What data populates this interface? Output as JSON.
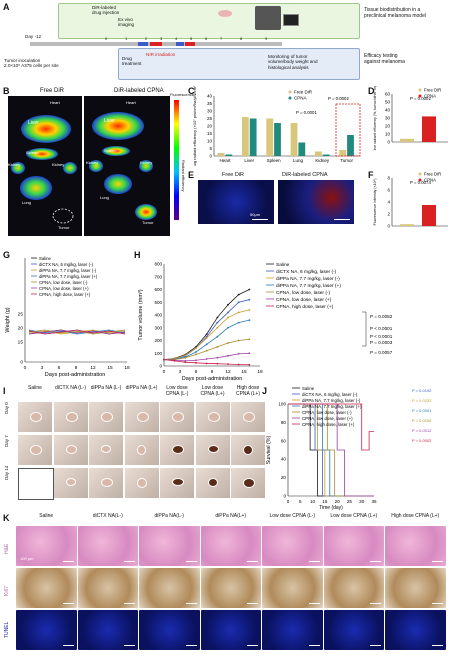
{
  "panel_letters": [
    "A",
    "B",
    "C",
    "D",
    "E",
    "F",
    "G",
    "H",
    "I",
    "J",
    "K"
  ],
  "A": {
    "top_labels": [
      "DiR-labeled",
      "drug injection",
      "Ex vivo",
      "imaging"
    ],
    "right_top": [
      "Tissue biodistribution in a",
      "preclinical melanoma model"
    ],
    "right_bottom": [
      "Efficacy testing",
      "against melanoma"
    ],
    "day_start": "Day -12",
    "ticks": [
      "0",
      "1",
      "2",
      "3",
      "4",
      "5",
      "6",
      "7",
      "8",
      "9"
    ],
    "inoculation": [
      "Tumor inoculation",
      "2.0×10⁶ A375 cells per site"
    ],
    "drug_treatment": [
      "Drug",
      "treatment"
    ],
    "nir": "NIR irradiation",
    "monitoring": [
      "Monitoring of tumor",
      "volume/body weight and",
      "histological analysis"
    ]
  },
  "B": {
    "col1": "Free DiR",
    "col2": "DiR-labeled CPNA",
    "organs_left": [
      "Heart",
      "Liver",
      "Spleen",
      "Kidney",
      "Kidney",
      "Lung",
      "Tumor"
    ],
    "organs_right": [
      "Heart",
      "Liver",
      "Spleen",
      "Kidney",
      "Kidney",
      "Lung",
      "Tumor"
    ],
    "colorbar_title": "Fluorescence",
    "colorbar_label": "Radiant efficiency"
  },
  "C": {
    "ylabel": "Avg radiant efficiency (×10⁷ p/s/cm²/sr/μW/cm²)",
    "legend": [
      "Free DiR",
      "CPNA"
    ],
    "yticks": [
      "0",
      "5",
      "10",
      "15",
      "20",
      "25",
      "30",
      "35",
      "40"
    ],
    "annot1": "P = 0.0001",
    "annot2": "P = 0.0002",
    "chart_data": {
      "type": "bar",
      "categories": [
        "Heart",
        "Liver",
        "Spleen",
        "Lung",
        "Kidney",
        "Tumor"
      ],
      "ylim": [
        0,
        40
      ],
      "series": [
        {
          "name": "Free DiR",
          "values": [
            2,
            26,
            25,
            22,
            3,
            4
          ]
        },
        {
          "name": "CPNA",
          "values": [
            1,
            25,
            22,
            9,
            1,
            14
          ]
        }
      ]
    }
  },
  "D": {
    "ylabel": "Relative radiant efficiency (%, tumor/other organs)",
    "legend": [
      "Free DiR",
      "CPNA"
    ],
    "yticks": [
      "0",
      "10",
      "20",
      "30",
      "40",
      "50",
      "60"
    ],
    "annot": "P = 0.0002",
    "chart_data": {
      "type": "bar",
      "categories": [
        "Free DiR",
        "CPNA"
      ],
      "values": [
        4,
        32
      ],
      "ylim": [
        0,
        60
      ]
    }
  },
  "E": {
    "col1": "Free DiR",
    "col2": "DiR-labeled CPNA",
    "scale": "50μm"
  },
  "F": {
    "ylabel": "Fluorescence intensity (×10⁴)",
    "legend": [
      "Free DiR",
      "CPNA"
    ],
    "yticks": [
      "0",
      "2",
      "4",
      "6",
      "8"
    ],
    "annot": "P = 0.0074",
    "chart_data": {
      "type": "bar",
      "categories": [
        "Free DiR",
        "CPNA"
      ],
      "values": [
        0.3,
        3.5
      ],
      "ylim": [
        0,
        8
      ]
    }
  },
  "G": {
    "ylabel": "Weight (g)",
    "xlabel": "Days post-administration",
    "yticks": [
      "0",
      "15",
      "20",
      "25"
    ],
    "xticks": [
      "0",
      "3",
      "6",
      "9",
      "12",
      "15",
      "18"
    ],
    "legend": [
      "Saline",
      "diCTX NA, 6 mg/kg, laser (-)",
      "diPPa NA, 7.7 mg/kg, laser (-)",
      "diPPa NA, 7.7 mg/kg, laser (+)",
      "CPNA, low dose, laser (-)",
      "CPNA, low dose, laser (+)",
      "CPNA, high dose, laser (+)"
    ]
  },
  "H": {
    "ylabel": "Tumor volume (mm³)",
    "xlabel": "Days post-administration",
    "yticks": [
      "0",
      "100",
      "200",
      "300",
      "400",
      "500",
      "600",
      "700",
      "800"
    ],
    "xticks": [
      "0",
      "3",
      "6",
      "9",
      "12",
      "15",
      "18"
    ],
    "legend": [
      "Saline",
      "diCTX NA, 6 mg/kg, laser (-)",
      "diPPa NA, 7.7 mg/kg, laser (-)",
      "diPPa NA, 7.7 mg/kg, laser (+)",
      "CPNA, low dose, laser (-)",
      "CPNA, low dose, laser (+)",
      "CPNA, high dose, laser (+)"
    ],
    "pvals": [
      "P = 0.0082",
      "P < 0.0001",
      "P < 0.0001",
      "P = 0.0003",
      "P = 0.0057"
    ],
    "chart_data": {
      "type": "line",
      "x": [
        0,
        2,
        4,
        6,
        8,
        10,
        12,
        14,
        16
      ],
      "ylim": [
        0,
        800
      ],
      "series": [
        {
          "name": "Saline",
          "values": [
            50,
            60,
            90,
            150,
            250,
            380,
            480,
            560,
            600
          ]
        },
        {
          "name": "diCTX NA, 6 mg/kg, laser (-)",
          "values": [
            50,
            55,
            80,
            140,
            230,
            340,
            420,
            500,
            520
          ]
        },
        {
          "name": "diPPa NA, 7.7 mg/kg, laser (-)",
          "values": [
            50,
            58,
            85,
            140,
            220,
            300,
            380,
            420,
            440
          ]
        },
        {
          "name": "diPPa NA, 7.7 mg/kg, laser (+)",
          "values": [
            50,
            52,
            70,
            110,
            170,
            230,
            300,
            340,
            360
          ]
        },
        {
          "name": "CPNA, low dose, laser (-)",
          "values": [
            50,
            50,
            65,
            90,
            120,
            150,
            180,
            200,
            210
          ]
        },
        {
          "name": "CPNA, low dose, laser (+)",
          "values": [
            50,
            45,
            40,
            45,
            55,
            65,
            80,
            95,
            100
          ]
        },
        {
          "name": "CPNA, high dose, laser (+)",
          "values": [
            50,
            40,
            30,
            25,
            20,
            18,
            15,
            12,
            10
          ]
        }
      ]
    }
  },
  "I": {
    "cols": [
      "Saline",
      "diCTX NA (L-)",
      "diPPa NA (L-)",
      "diPPa NA (L+)",
      "Low dose CPNA (L-)",
      "Low dose CPNA (L+)",
      "High dose CPNA (L+)"
    ],
    "rows": [
      "Day 0",
      "Day 7",
      "Day 14"
    ]
  },
  "J": {
    "ylabel": "Survival (%)",
    "xlabel": "Time (day)",
    "yticks": [
      "0",
      "20",
      "40",
      "60",
      "80",
      "100"
    ],
    "xticks": [
      "0",
      "5",
      "10",
      "15",
      "20",
      "25",
      "30",
      "35"
    ],
    "legend": [
      "Saline",
      "diCTX NA, 6 mg/kg, laser (-)",
      "diPPa NA, 7.7 mg/kg, laser (-)",
      "diPPa NA, 7.7 mg/kg, laser (+)",
      "CPNA, low dose, laser (-)",
      "CPNA, low dose, laser (+)",
      "CPNA, high dose, laser (+)"
    ],
    "pvals": [
      "P = 0.0192",
      "P = 0.0253",
      "P = 0.0001",
      "P = 0.0154",
      "P = 0.0012",
      "P = 0.0002"
    ]
  },
  "K": {
    "cols": [
      "Saline",
      "diCTX NA(L-)",
      "diPPa NA(L-)",
      "diPPa NA(L+)",
      "Low dose CPNA (L-)",
      "Low dose CPNA (L+)",
      "High dose CPNA (L+)"
    ],
    "rows": [
      "H&E",
      "Ki67",
      "TUNEL"
    ],
    "scale": "100 μm"
  },
  "colors": {
    "saline": "#1a1a1a",
    "dictx": "#3b5bc9",
    "dippa_m": "#d09a2a",
    "dippa_p": "#2a7bb8",
    "cpna_low_m": "#a98c2a",
    "cpna_low_p": "#a03fa8",
    "cpna_high": "#c8234b",
    "free_dir": "#d8c77a",
    "cpna": "#1f8a7d",
    "accent_red": "#d92121"
  }
}
